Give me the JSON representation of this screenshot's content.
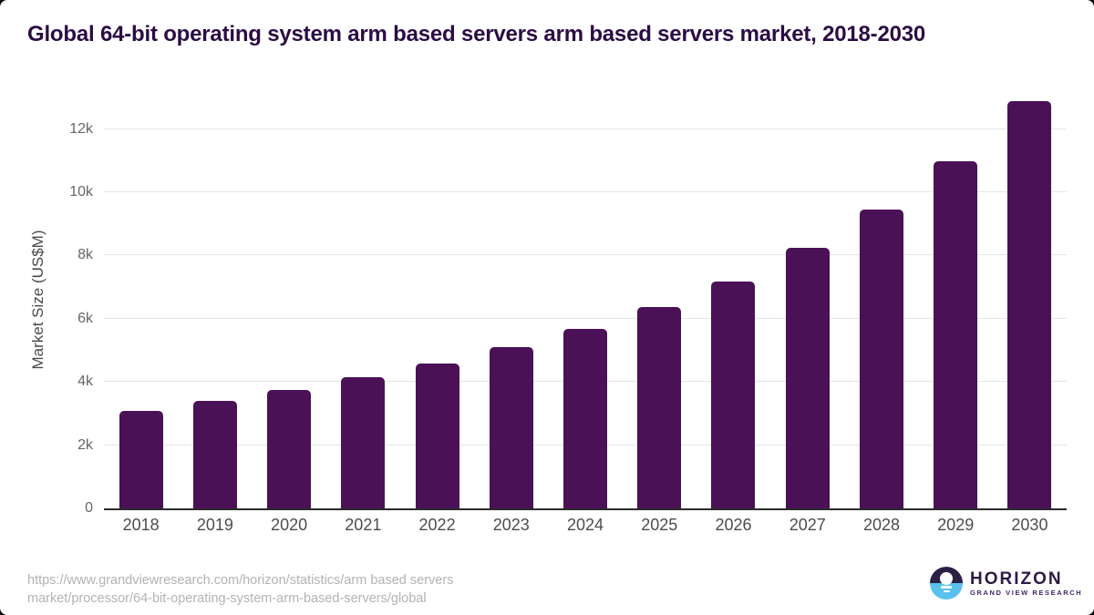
{
  "page": {
    "title": "Global 64-bit operating system arm based servers arm based servers market, 2018-2030",
    "source_line1": "https://www.grandviewresearch.com/horizon/statistics/arm based servers",
    "source_line2": "market/processor/64-bit-operating-system-arm-based-servers/global",
    "logo": {
      "name": "HORIZON",
      "subtitle": "GRAND VIEW RESEARCH"
    }
  },
  "colors": {
    "bar": "#4a1157",
    "title": "#2b0c44",
    "gridline": "#e6e6e6",
    "axis_line": "#2b2b2b",
    "y_tick": "#666666",
    "x_label": "#4d4d4d",
    "source_text": "#b3b3b3",
    "logo_navy": "#2b2145",
    "logo_blue": "#5ac1ee"
  },
  "chart_data": {
    "type": "bar",
    "title": "Global 64-bit operating system arm based servers arm based servers market, 2018-2030",
    "xlabel": "",
    "ylabel": "Market Size (US$M)",
    "categories": [
      "2018",
      "2019",
      "2020",
      "2021",
      "2022",
      "2023",
      "2024",
      "2025",
      "2026",
      "2027",
      "2028",
      "2029",
      "2030"
    ],
    "values": [
      3090,
      3400,
      3740,
      4150,
      4580,
      5090,
      5680,
      6360,
      7190,
      8230,
      9460,
      10980,
      12890
    ],
    "yticks": [
      0,
      2000,
      4000,
      6000,
      8000,
      10000,
      12000
    ],
    "ytick_labels": [
      "0",
      "2k",
      "4k",
      "6k",
      "8k",
      "10k",
      "12k"
    ],
    "ylim": [
      0,
      13200
    ],
    "grid": "horizontal",
    "legend": "none",
    "bar_color": "#4a1157"
  }
}
